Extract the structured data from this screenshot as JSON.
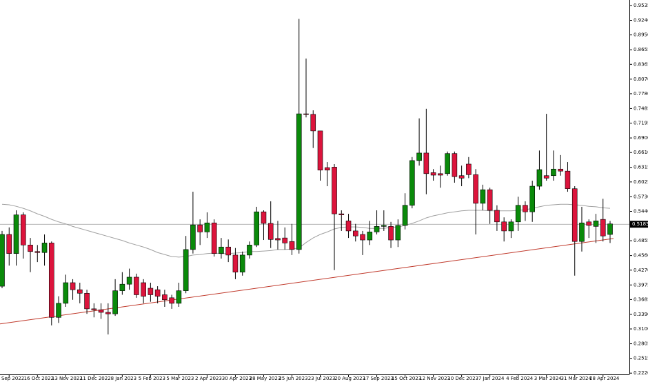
{
  "chart_data": {
    "type": "candlestick",
    "categories": [
      null,
      "8 Sep 2022",
      null,
      null,
      null,
      "16 Oct 2022",
      null,
      null,
      null,
      "13 Nov 2022",
      null,
      null,
      null,
      "11 Dec 2022",
      null,
      null,
      null,
      "8 Jan 2023",
      null,
      null,
      null,
      "5 Feb 2023",
      null,
      null,
      null,
      "5 Mar 2023",
      null,
      null,
      null,
      "2 Apr 2023",
      null,
      null,
      null,
      "30 Apr 2023",
      null,
      null,
      null,
      "28 May 2023",
      null,
      null,
      null,
      "25 Jun 2023",
      null,
      null,
      null,
      "23 Jul 2023",
      null,
      null,
      null,
      "20 Aug 2023",
      null,
      null,
      null,
      "17 Sep 2023",
      null,
      null,
      null,
      "15 Oct 2023",
      null,
      null,
      null,
      "12 Nov 2023",
      null,
      null,
      null,
      "10 Dec 2023",
      null,
      null,
      null,
      "7 Jan 2024",
      null,
      null,
      null,
      "4 Feb 2024",
      null,
      null,
      null,
      "3 Mar 2024",
      null,
      null,
      null,
      "31 Mar 2024",
      null,
      null,
      null,
      "28 Apr 2024",
      null
    ],
    "open": [
      0.395,
      0.498,
      0.46,
      0.537,
      0.477,
      0.464,
      0.462,
      0.481,
      0.333,
      0.361,
      0.402,
      0.388,
      0.381,
      0.35,
      0.348,
      0.343,
      0.34,
      0.386,
      0.399,
      0.413,
      0.402,
      0.391,
      0.388,
      0.378,
      0.372,
      0.361,
      0.386,
      0.468,
      0.517,
      0.503,
      0.521,
      0.46,
      0.473,
      0.457,
      0.423,
      0.457,
      0.477,
      0.543,
      0.52,
      0.49,
      0.491,
      0.484,
      0.468,
      0.738,
      0.737,
      0.704,
      0.631,
      0.632,
      0.539,
      0.525,
      0.505,
      0.498,
      0.487,
      0.503,
      0.514,
      0.514,
      0.487,
      0.516,
      0.556,
      0.645,
      0.66,
      0.621,
      0.619,
      0.619,
      0.659,
      0.615,
      0.638,
      0.617,
      0.56,
      0.587,
      0.546,
      0.523,
      0.505,
      0.523,
      0.556,
      0.543,
      0.594,
      0.615,
      0.615,
      0.628,
      0.624,
      0.589,
      0.484,
      0.523,
      0.514,
      0.528,
      0.498
    ],
    "high": [
      0.505,
      0.512,
      0.546,
      0.542,
      0.491,
      0.477,
      0.498,
      0.484,
      0.375,
      0.418,
      0.409,
      0.402,
      0.388,
      0.361,
      0.361,
      0.361,
      0.409,
      0.423,
      0.43,
      0.42,
      0.409,
      0.402,
      0.395,
      0.388,
      0.378,
      0.402,
      0.495,
      0.583,
      0.528,
      0.542,
      0.528,
      0.491,
      0.488,
      0.471,
      0.464,
      0.484,
      0.553,
      0.546,
      0.564,
      0.525,
      0.512,
      0.519,
      0.927,
      0.848,
      0.745,
      0.704,
      0.642,
      0.638,
      0.546,
      0.539,
      0.519,
      0.505,
      0.525,
      0.546,
      0.546,
      0.523,
      0.528,
      0.58,
      0.652,
      0.729,
      0.748,
      0.628,
      0.635,
      0.663,
      0.663,
      0.635,
      0.652,
      0.628,
      0.597,
      0.591,
      0.556,
      0.532,
      0.528,
      0.573,
      0.564,
      0.605,
      0.665,
      0.738,
      0.665,
      0.656,
      0.642,
      0.594,
      0.553,
      0.528,
      0.539,
      0.569,
      0.525
    ],
    "low": [
      0.391,
      0.436,
      0.436,
      0.45,
      0.423,
      0.443,
      0.436,
      0.317,
      0.322,
      0.354,
      0.368,
      0.361,
      0.34,
      0.333,
      0.33,
      0.299,
      0.336,
      0.378,
      0.388,
      0.372,
      0.361,
      0.364,
      0.361,
      0.354,
      0.35,
      0.354,
      0.381,
      0.46,
      0.477,
      0.491,
      0.454,
      0.45,
      0.443,
      0.409,
      0.416,
      0.45,
      0.473,
      0.487,
      0.471,
      0.468,
      0.468,
      0.457,
      0.46,
      0.731,
      0.67,
      0.605,
      0.594,
      0.427,
      0.505,
      0.491,
      0.484,
      0.457,
      0.477,
      0.498,
      0.505,
      0.471,
      0.473,
      0.508,
      0.55,
      0.635,
      0.578,
      0.605,
      0.591,
      0.615,
      0.601,
      0.594,
      0.61,
      0.498,
      0.546,
      0.519,
      0.505,
      0.484,
      0.491,
      0.505,
      0.525,
      0.523,
      0.587,
      0.605,
      0.605,
      0.615,
      0.583,
      0.416,
      0.464,
      0.491,
      0.481,
      0.484,
      0.481
    ],
    "close": [
      0.498,
      0.46,
      0.537,
      0.477,
      0.464,
      0.462,
      0.481,
      0.333,
      0.361,
      0.402,
      0.388,
      0.381,
      0.35,
      0.348,
      0.343,
      0.34,
      0.386,
      0.399,
      0.413,
      0.378,
      0.375,
      0.378,
      0.375,
      0.368,
      0.361,
      0.386,
      0.468,
      0.517,
      0.503,
      0.521,
      0.46,
      0.473,
      0.457,
      0.423,
      0.457,
      0.477,
      0.543,
      0.52,
      0.488,
      0.487,
      0.481,
      0.468,
      0.738,
      0.737,
      0.704,
      0.626,
      0.626,
      0.539,
      0.537,
      0.505,
      0.495,
      0.487,
      0.503,
      0.514,
      0.516,
      0.487,
      0.516,
      0.556,
      0.645,
      0.66,
      0.619,
      0.616,
      0.616,
      0.659,
      0.613,
      0.61,
      0.617,
      0.56,
      0.587,
      0.546,
      0.523,
      0.505,
      0.523,
      0.556,
      0.543,
      0.594,
      0.627,
      0.61,
      0.628,
      0.624,
      0.589,
      0.484,
      0.521,
      0.516,
      0.525,
      0.495,
      0.519
    ],
    "up_color": "#0a8a0a",
    "down_color": "#dc143c",
    "moving_average": {
      "color": "#a0a0a0",
      "values": [
        0.558,
        0.557,
        0.554,
        0.55,
        0.545,
        0.539,
        0.534,
        0.528,
        0.523,
        0.519,
        0.514,
        0.51,
        0.506,
        0.502,
        0.498,
        0.494,
        0.49,
        0.486,
        0.481,
        0.477,
        0.473,
        0.468,
        0.462,
        0.458,
        0.454,
        0.453,
        0.454,
        0.457,
        0.458,
        0.46,
        0.461,
        0.46,
        0.46,
        0.461,
        0.462,
        0.464,
        0.464,
        0.465,
        0.466,
        0.468,
        0.468,
        0.469,
        0.471,
        0.482,
        0.491,
        0.498,
        0.503,
        0.509,
        0.512,
        0.513,
        0.513,
        0.512,
        0.51,
        0.51,
        0.51,
        0.512,
        0.513,
        0.516,
        0.52,
        0.525,
        0.531,
        0.535,
        0.538,
        0.541,
        0.543,
        0.545,
        0.546,
        0.546,
        0.546,
        0.545,
        0.545,
        0.545,
        0.545,
        0.546,
        0.547,
        0.55,
        0.553,
        0.556,
        0.557,
        0.558,
        0.558,
        0.557,
        0.556,
        0.554,
        0.553,
        0.551,
        0.55
      ]
    },
    "trendline": {
      "color": "#c0392b",
      "values": [
        0.32,
        0.49
      ]
    },
    "last_price": 0.5183,
    "ylim": [
      0.2195,
      0.9645
    ],
    "yticks": [
      0.9535,
      {
        "value": 0.924,
        "label": "0.9240"
      },
      {
        "value": 0.895,
        "label": "0.8950"
      },
      0.8655,
      0.8365,
      {
        "value": 0.807,
        "label": "0.8070"
      },
      {
        "value": 0.778,
        "label": "0.7780"
      },
      0.7485,
      0.7195,
      {
        "value": 0.69,
        "label": "0.6900"
      },
      {
        "value": 0.661,
        "label": "0.6610"
      },
      0.6315,
      0.6025,
      {
        "value": 0.573,
        "label": "0.5730"
      },
      {
        "value": 0.544,
        "label": "0.5440"
      },
      0.4855,
      {
        "value": 0.456,
        "label": "0.4560"
      },
      {
        "value": 0.427,
        "label": "0.4270"
      },
      0.3975,
      0.3685,
      {
        "value": 0.339,
        "label": "0.3390"
      },
      {
        "value": 0.31,
        "label": "0.3100"
      },
      0.2805,
      0.2515,
      {
        "value": 0.222,
        "label": "0.2220"
      }
    ]
  }
}
